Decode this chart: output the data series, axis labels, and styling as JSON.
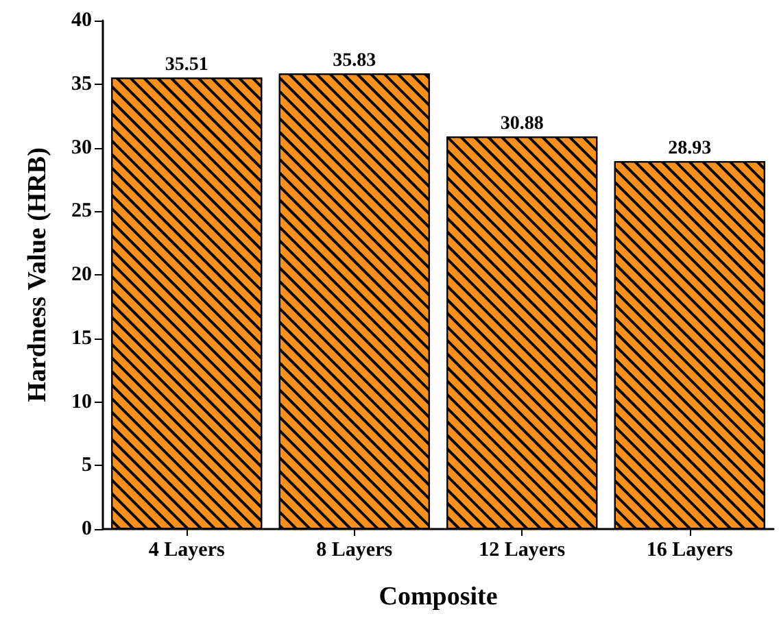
{
  "chart_data": {
    "type": "bar",
    "xlabel": "Composite",
    "ylabel": "Hardness Value (HRB)",
    "categories": [
      "4 Layers",
      "8 Layers",
      "12 Layers",
      "16 Layers"
    ],
    "values": [
      35.51,
      35.83,
      30.88,
      28.93
    ],
    "color": "#f7901e",
    "ylim": [
      0,
      40
    ],
    "yticks": [
      0,
      5,
      10,
      15,
      20,
      25,
      30,
      35,
      40
    ],
    "data_labels": true
  }
}
